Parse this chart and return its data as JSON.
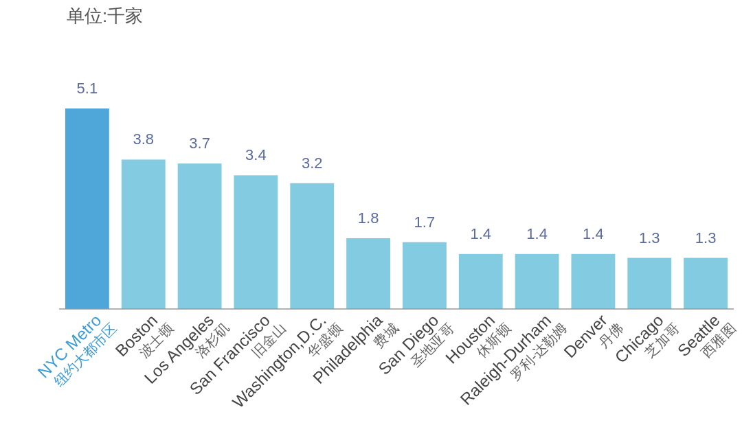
{
  "chart_data": {
    "type": "bar",
    "title": "单位:千家",
    "categories": [
      "NYC Metro\n纽约大都市区",
      "Boston\n波士顿",
      "Los Angeles\n洛杉矶",
      "San Francisco\n旧金山",
      "Washington,D.C.\n华盛顿",
      "Philadelphia\n费城",
      "San Diego\n圣地亚哥",
      "Houston\n休斯顿",
      "Raleigh-Durham\n罗利-达勒姆",
      "Denver\n丹佛",
      "Chicago\n芝加哥",
      "Seattle\n西雅图"
    ],
    "values": [
      5.1,
      3.8,
      3.7,
      3.4,
      3.2,
      1.8,
      1.7,
      1.4,
      1.4,
      1.4,
      1.3,
      1.3
    ],
    "colors": [
      "#4ea7d8",
      "#82cbe1",
      "#82cbe1",
      "#82cbe1",
      "#82cbe1",
      "#82cbe1",
      "#82cbe1",
      "#82cbe1",
      "#82cbe1",
      "#82cbe1",
      "#82cbe1",
      "#82cbe1"
    ],
    "data_labels": true
  }
}
